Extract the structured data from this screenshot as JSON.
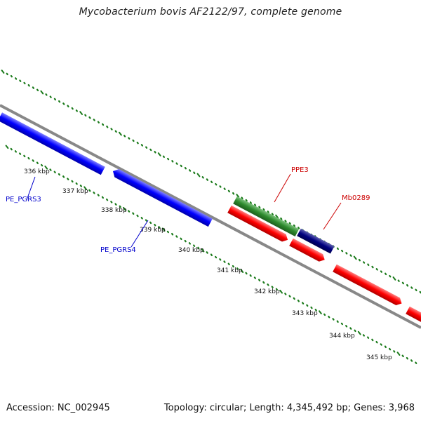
{
  "title": "Mycobacterium bovis AF2122/97, complete genome",
  "accession": "Accession: NC_002945",
  "topology": "Topology: circular; Length: 4,345,492 bp; Genes: 3,968",
  "ticks": [
    "336 kbp",
    "337 kbp",
    "338 kbp",
    "339 kbp",
    "340 kbp",
    "341 kbp",
    "342 kbp",
    "343 kbp",
    "344 kbp",
    "345 kbp"
  ],
  "genes": [
    {
      "name": "PE_PGRS3",
      "color": "#0000cc"
    },
    {
      "name": "PE_PGRS4",
      "color": "#0000cc"
    },
    {
      "name": "PPE3",
      "color": "#cc0000"
    },
    {
      "name": "Mb0289",
      "color": "#cc0000"
    }
  ],
  "colors": {
    "blue_feature": "#0000ff",
    "green_feature": "#2e8b2e",
    "navy_feature": "#000080",
    "red_feature": "#ff0000",
    "backbone": "#888888",
    "tick_dots": "#1a7a1a"
  }
}
